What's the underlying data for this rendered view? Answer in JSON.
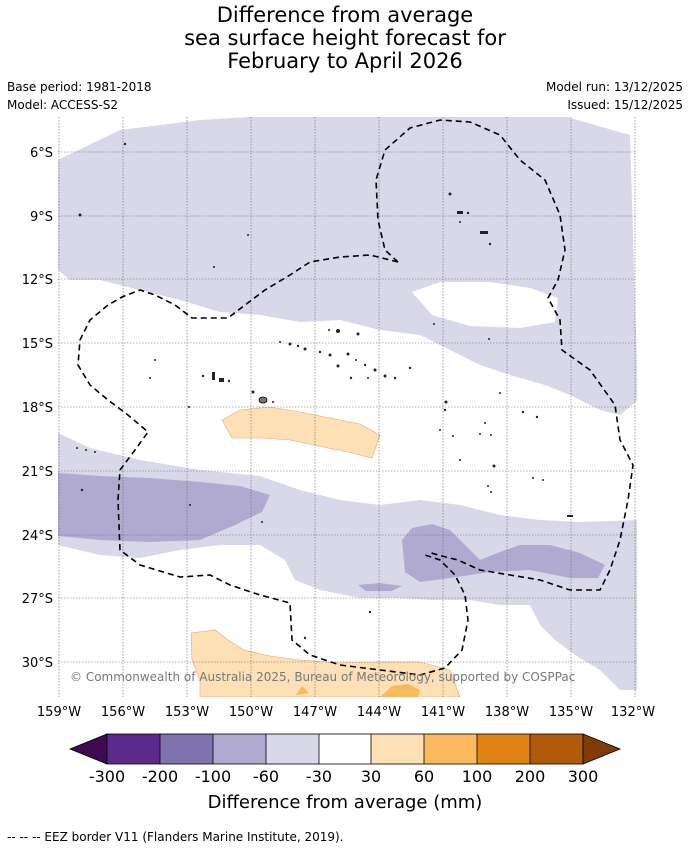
{
  "title": {
    "line1": "Difference from average",
    "line2": "sea surface height forecast for",
    "line3": "February to April 2026"
  },
  "meta": {
    "base_period": "Base period: 1981-2018",
    "model": "Model: ACCESS-S2",
    "model_run": "Model run: 13/12/2025",
    "issued": "Issued: 15/12/2025"
  },
  "map": {
    "lat_ticks": [
      "6°S",
      "9°S",
      "12°S",
      "15°S",
      "18°S",
      "21°S",
      "24°S",
      "27°S",
      "30°S"
    ],
    "lon_ticks": [
      "159°W",
      "156°W",
      "153°W",
      "150°W",
      "147°W",
      "144°W",
      "141°W",
      "138°W",
      "135°W",
      "132°W"
    ],
    "copyright": "© Commonwealth of Australia 2025, Bureau of Meteorology, supported by COSPPac"
  },
  "colorbar": {
    "tick_labels": [
      "-300",
      "-200",
      "-100",
      "-60",
      "-30",
      "30",
      "60",
      "100",
      "200",
      "300"
    ],
    "colors": [
      "#3f0a52",
      "#5c2a8a",
      "#7f72af",
      "#b0aad1",
      "#d8d8e9",
      "#ffffff",
      "#fde0b5",
      "#fbb95f",
      "#e08312",
      "#b05a0a",
      "#7f3c07"
    ],
    "label": "Difference from average (mm)"
  },
  "footnote": "--  --  -- EEZ border V11 (Flanders Marine Institute, 2019)."
}
